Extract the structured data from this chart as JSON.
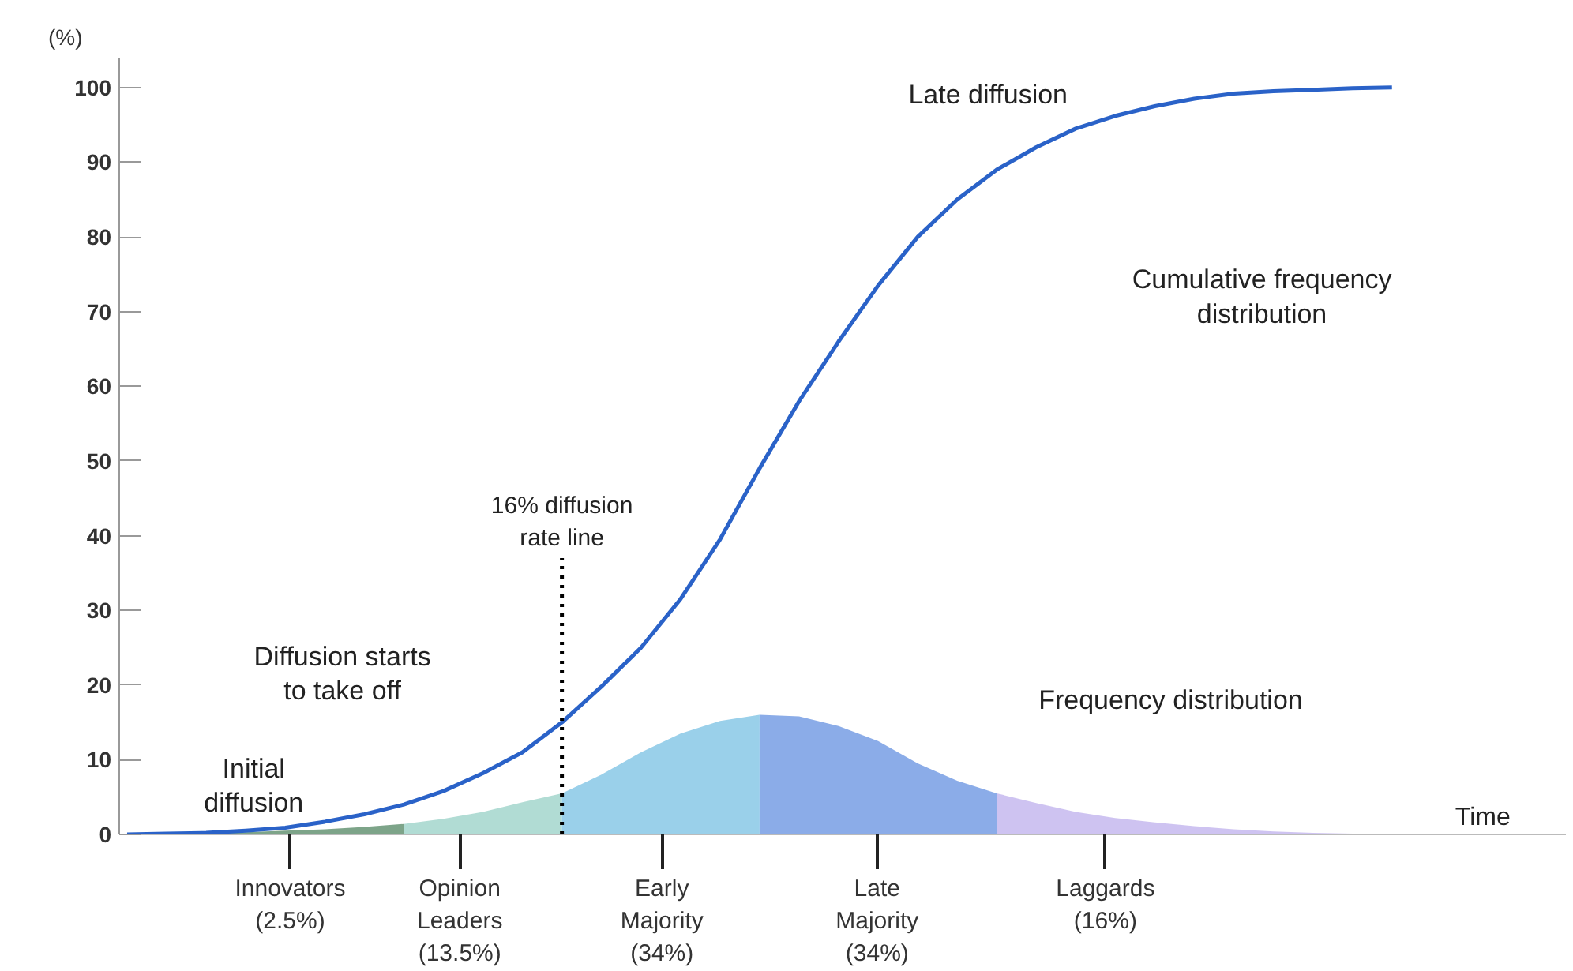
{
  "chart_data": {
    "type": "line",
    "xlabel": "Time",
    "ylabel": "(%)",
    "categories": [
      null,
      null,
      null,
      null,
      null,
      null,
      null,
      null,
      null,
      null,
      null,
      null,
      null,
      null,
      null,
      null,
      null,
      null,
      null,
      null,
      null,
      null,
      null,
      null,
      null,
      null,
      null,
      null,
      null,
      null,
      null,
      null,
      null,
      null
    ],
    "ylim": [
      0,
      104
    ],
    "yticks": [
      0,
      10,
      20,
      30,
      40,
      50,
      60,
      70,
      80,
      90,
      100
    ],
    "tick_labels": "y",
    "grid": false,
    "marker": "none",
    "line_style": "solid",
    "series": [
      {
        "color": "#2a62c8",
        "values": [
          0,
          0.1,
          0.2,
          0.5,
          0.9,
          1.7,
          2.7,
          4.0,
          5.8,
          8.2,
          11,
          15,
          19.8,
          25,
          31.5,
          39.5,
          49,
          58,
          66,
          73.5,
          80,
          85,
          89,
          92,
          94.5,
          96.2,
          97.5,
          98.5,
          99.2,
          99.5,
          99.7,
          99.9,
          100,
          null
        ]
      },
      {
        "type": "area",
        "color": "#6f9a7c",
        "values": [
          0,
          0.1,
          0.2,
          0.3,
          0.5,
          0.7,
          1.0,
          1.4,
          null,
          null,
          null,
          null,
          null,
          null,
          null,
          null,
          null,
          null,
          null,
          null,
          null,
          null,
          null,
          null,
          null,
          null,
          null,
          null,
          null,
          null,
          null,
          null,
          null,
          null
        ]
      },
      {
        "type": "area",
        "color": "#a9d8cf",
        "values": [
          null,
          null,
          null,
          null,
          null,
          null,
          null,
          1.4,
          2.1,
          3.0,
          4.3,
          5.5,
          null,
          null,
          null,
          null,
          null,
          null,
          null,
          null,
          null,
          null,
          null,
          null,
          null,
          null,
          null,
          null,
          null,
          null,
          null,
          null,
          null,
          null
        ]
      },
      {
        "type": "area",
        "color": "#8fcbe8",
        "values": [
          null,
          null,
          null,
          null,
          null,
          null,
          null,
          null,
          null,
          null,
          null,
          5.5,
          8,
          11,
          13.5,
          15.2,
          16,
          null,
          null,
          null,
          null,
          null,
          null,
          null,
          null,
          null,
          null,
          null,
          null,
          null,
          null,
          null,
          null,
          null
        ]
      },
      {
        "type": "area",
        "color": "#7ea3e6",
        "values": [
          null,
          null,
          null,
          null,
          null,
          null,
          null,
          null,
          null,
          null,
          null,
          null,
          null,
          null,
          null,
          null,
          16,
          15.8,
          14.5,
          12.5,
          9.5,
          7.2,
          5.5,
          null,
          null,
          null,
          null,
          null,
          null,
          null,
          null,
          null,
          null,
          null
        ]
      },
      {
        "type": "area",
        "color": "#c9bdf0",
        "values": [
          null,
          null,
          null,
          null,
          null,
          null,
          null,
          null,
          null,
          null,
          null,
          null,
          null,
          null,
          null,
          null,
          null,
          null,
          null,
          null,
          null,
          null,
          5.5,
          4.2,
          3,
          2.2,
          1.6,
          1.1,
          0.7,
          0.4,
          0.2,
          0.1,
          0,
          0
        ]
      }
    ],
    "annotations": [
      "16% diffusion\nrate line",
      "Late diffusion",
      "Cumulative frequency\ndistribution",
      "Frequency distribution",
      "Diffusion starts\nto take off",
      "Initial\ndiffusion",
      "Innovators\n(2.5%)",
      "Opinion\nLeaders\n(13.5%)",
      "Early\nMajority\n(34%)",
      "Late\nMajority\n(34%)",
      "Laggards\n(16%)"
    ]
  }
}
